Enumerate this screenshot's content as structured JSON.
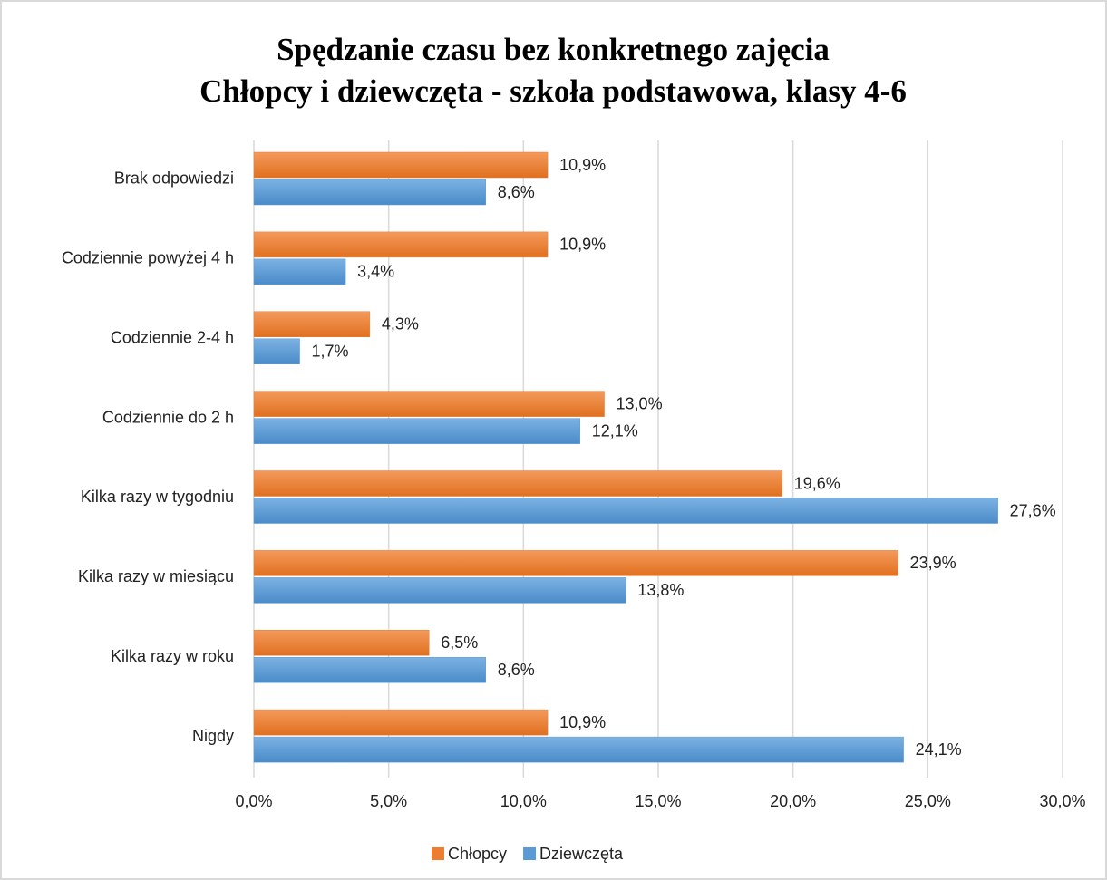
{
  "chart_data": {
    "type": "hbar",
    "title": "Spędzanie czasu bez konkretnego zajęcia",
    "subtitle": "Chłopcy i dziewczęta - szkoła podstawowa, klasy 4-6",
    "categories": [
      "Brak odpowiedzi",
      "Codziennie powyżej 4 h",
      "Codziennie 2-4 h",
      "Codziennie do 2 h",
      "Kilka razy w tygodniu",
      "Kilka razy w miesiącu",
      "Kilka razy w roku",
      "Nigdy"
    ],
    "series": [
      {
        "name": "Chłopcy",
        "color": "#ed7d31",
        "values": [
          10.9,
          10.9,
          4.3,
          13.0,
          19.6,
          23.9,
          6.5,
          10.9
        ],
        "value_labels": [
          "10,9%",
          "10,9%",
          "4,3%",
          "13,0%",
          "19,6%",
          "23,9%",
          "6,5%",
          "10,9%"
        ]
      },
      {
        "name": "Dziewczęta",
        "color": "#5b9bd5",
        "values": [
          8.6,
          3.4,
          1.7,
          12.1,
          27.6,
          13.8,
          8.6,
          24.1
        ],
        "value_labels": [
          "8,6%",
          "3,4%",
          "1,7%",
          "12,1%",
          "27,6%",
          "13,8%",
          "8,6%",
          "24,1%"
        ]
      }
    ],
    "xlim": [
      0,
      30
    ],
    "xticks": [
      {
        "value": 0,
        "label": "0,0%"
      },
      {
        "value": 5,
        "label": "5,0%"
      },
      {
        "value": 10,
        "label": "10,0%"
      },
      {
        "value": 15,
        "label": "15,0%"
      },
      {
        "value": 20,
        "label": "20,0%"
      },
      {
        "value": 25,
        "label": "25,0%"
      },
      {
        "value": 30,
        "label": "30,0%"
      }
    ],
    "grid": true,
    "legend": "bottom"
  }
}
